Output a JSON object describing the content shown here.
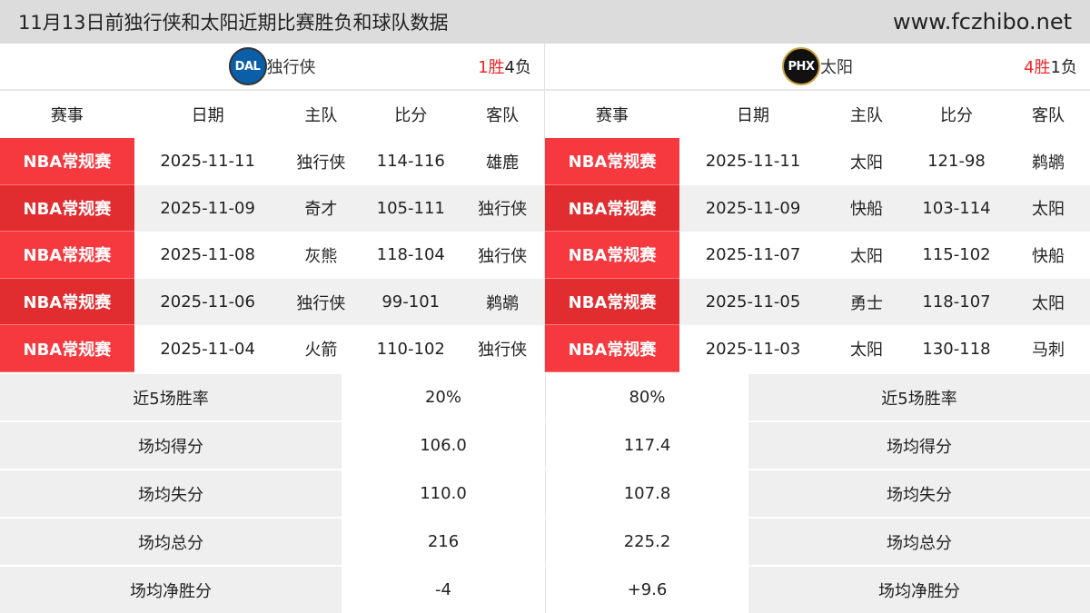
{
  "title": "11月13日前独行侠和太阳近期比赛胜负和球队数据",
  "site": "www.fczhibo.net",
  "headers": [
    "赛事",
    "日期",
    "主队",
    "比分",
    "客队"
  ],
  "left": {
    "team": "独行侠",
    "logo": "DAL",
    "logo_color": "#0a5fa8",
    "wins": "1胜",
    "losses": "4负",
    "games": [
      [
        "NBA常规赛",
        "2025-11-11",
        "独行侠",
        "114-116",
        "雄鹿"
      ],
      [
        "NBA常规赛",
        "2025-11-09",
        "奇才",
        "105-111",
        "独行侠"
      ],
      [
        "NBA常规赛",
        "2025-11-08",
        "灰熊",
        "118-104",
        "独行侠"
      ],
      [
        "NBA常规赛",
        "2025-11-06",
        "独行侠",
        "99-101",
        "鹈鹕"
      ],
      [
        "NBA常规赛",
        "2025-11-04",
        "火箭",
        "110-102",
        "独行侠"
      ]
    ]
  },
  "right": {
    "team": "太阳",
    "logo": "PHX",
    "logo_color": "#111111",
    "wins": "4胜",
    "losses": "1负",
    "games": [
      [
        "NBA常规赛",
        "2025-11-11",
        "太阳",
        "121-98",
        "鹈鹕"
      ],
      [
        "NBA常规赛",
        "2025-11-09",
        "快船",
        "103-114",
        "太阳"
      ],
      [
        "NBA常规赛",
        "2025-11-07",
        "太阳",
        "115-102",
        "快船"
      ],
      [
        "NBA常规赛",
        "2025-11-05",
        "勇士",
        "118-107",
        "太阳"
      ],
      [
        "NBA常规赛",
        "2025-11-03",
        "太阳",
        "130-118",
        "马刺"
      ]
    ]
  },
  "stats": [
    {
      "label": "近5场胜率",
      "left": "20%",
      "right": "80%"
    },
    {
      "label": "场均得分",
      "left": "106.0",
      "right": "117.4"
    },
    {
      "label": "场均失分",
      "left": "110.0",
      "right": "107.8"
    },
    {
      "label": "场均总分",
      "left": "216",
      "right": "225.2"
    },
    {
      "label": "场均净胜分",
      "left": "-4",
      "right": "+9.6"
    }
  ]
}
